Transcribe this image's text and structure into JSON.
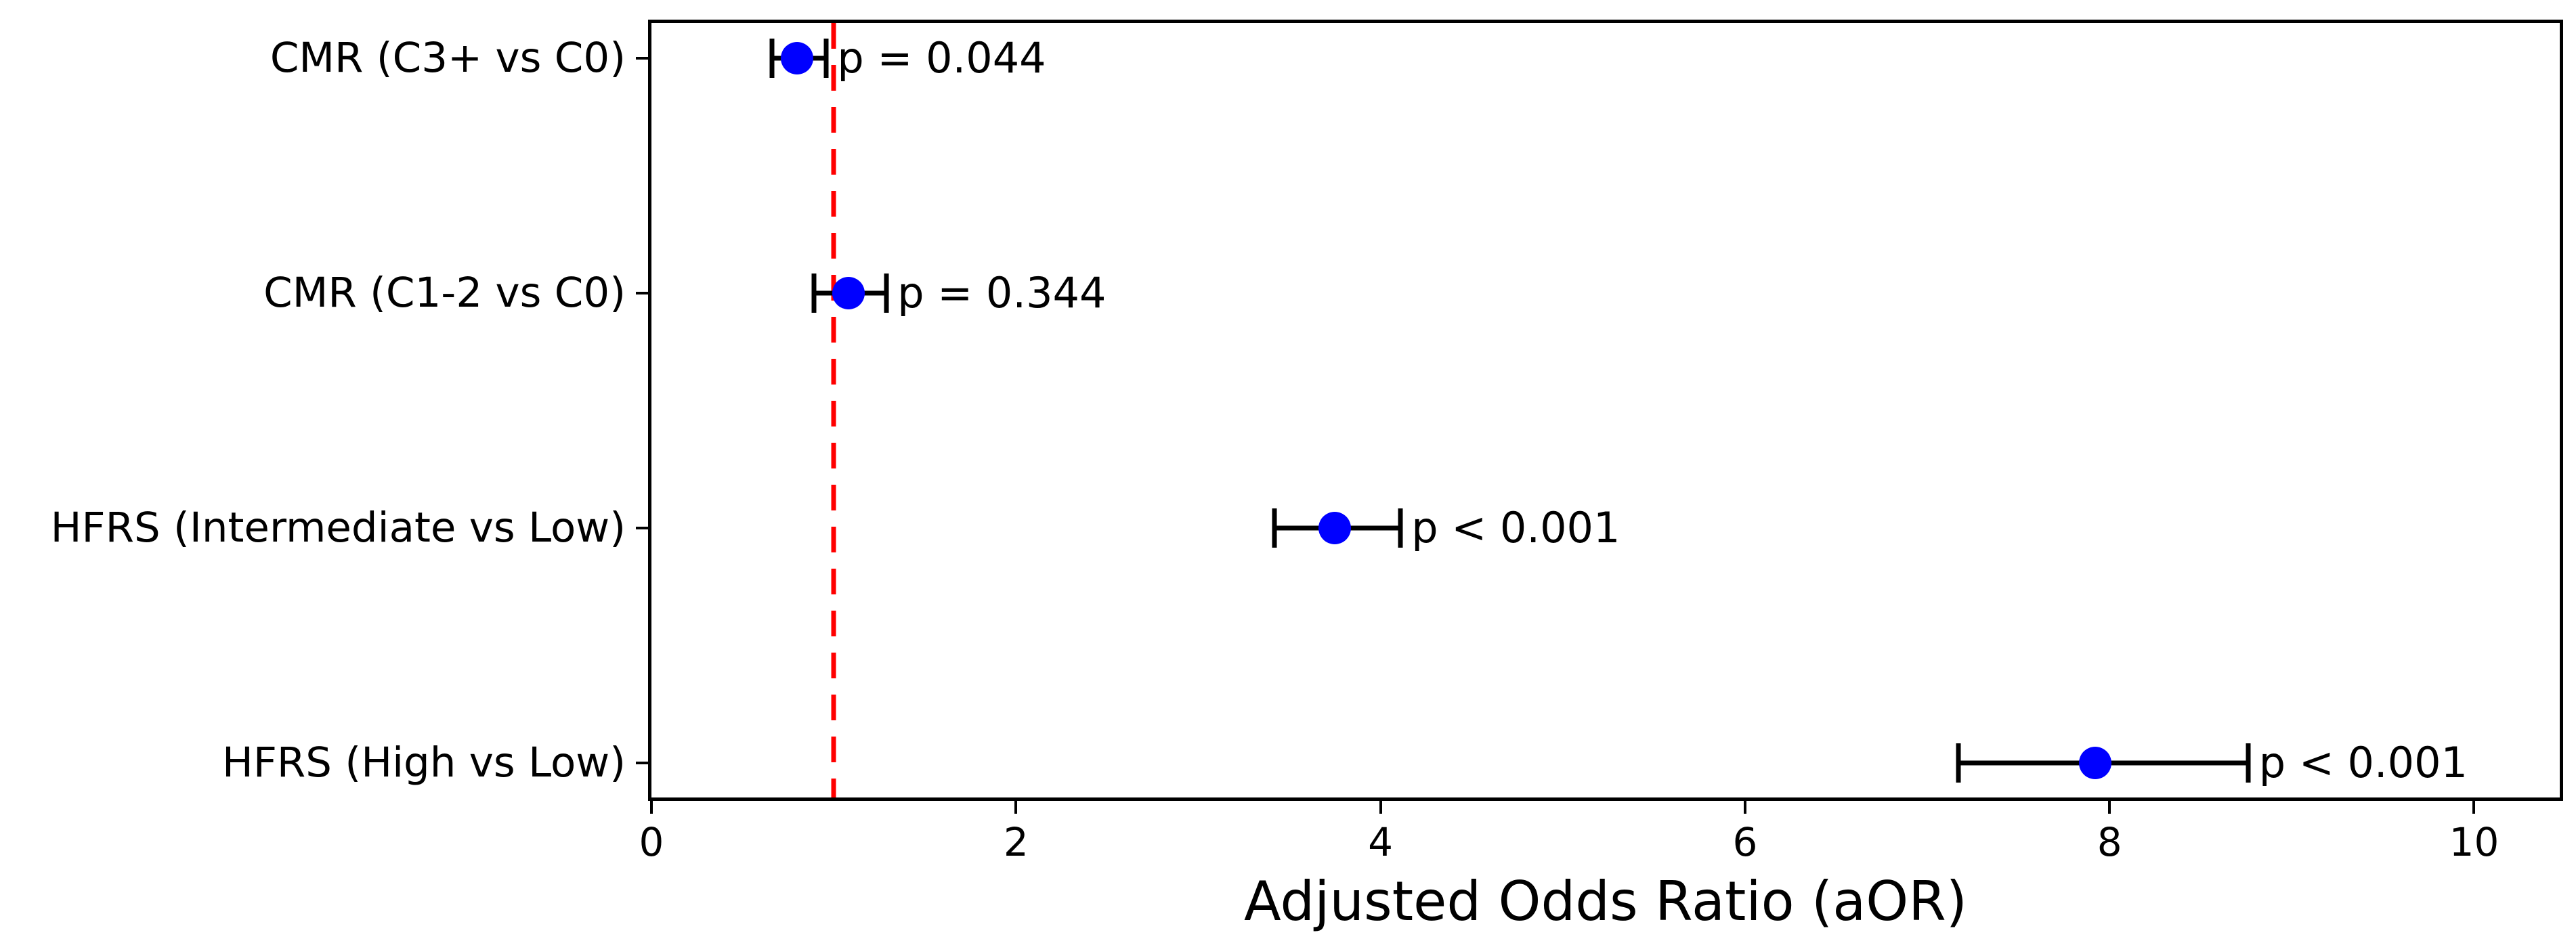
{
  "figure": {
    "background": "#ffffff",
    "text_color": "#000000"
  },
  "chart_data": {
    "type": "scatter",
    "subtype": "forest-plot-with-error-bars",
    "title": "",
    "xlabel": "Adjusted Odds Ratio (aOR)",
    "ylabel": "",
    "xlim": [
      0,
      10.47
    ],
    "x_ticks": [
      0,
      2,
      4,
      6,
      8,
      10
    ],
    "grid": "off",
    "legend": "none",
    "reference_line": {
      "x": 1.0,
      "color": "#ff0000",
      "style": "dashed"
    },
    "marker_color": "#0000ff",
    "error_bar_color": "#000000",
    "rows": [
      {
        "label": "CMR (C3+ vs C0)",
        "aor": 0.8,
        "ci_low": 0.66,
        "ci_high": 0.96,
        "p_label": "p = 0.044"
      },
      {
        "label": "CMR (C1-2 vs C0)",
        "aor": 1.08,
        "ci_low": 0.89,
        "ci_high": 1.29,
        "p_label": "p = 0.344"
      },
      {
        "label": "HFRS (Intermediate vs Low)",
        "aor": 3.75,
        "ci_low": 3.42,
        "ci_high": 4.11,
        "p_label": "p < 0.001"
      },
      {
        "label": "HFRS (High vs Low)",
        "aor": 7.92,
        "ci_low": 7.17,
        "ci_high": 8.76,
        "p_label": "p < 0.001"
      }
    ]
  }
}
